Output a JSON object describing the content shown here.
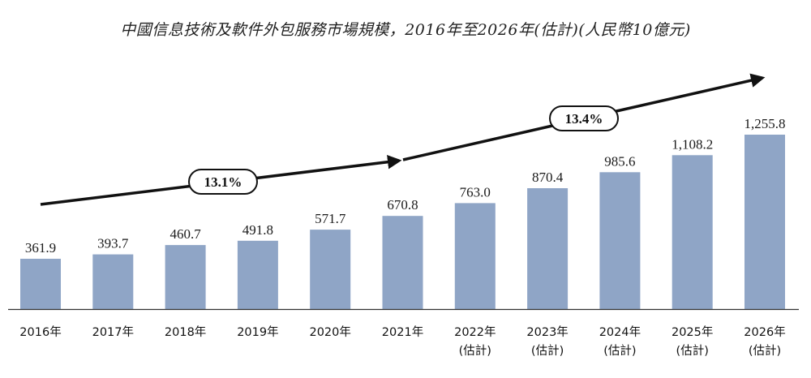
{
  "chart_data": {
    "type": "bar",
    "title": "中國信息技術及軟件外包服務市場規模，2016年至2026年(估計)(人民幣10億元)",
    "categories": [
      "2016年",
      "2017年",
      "2018年",
      "2019年",
      "2020年",
      "2021年",
      "2022年",
      "2023年",
      "2024年",
      "2025年",
      "2026年"
    ],
    "category_notes": [
      "",
      "",
      "",
      "",
      "",
      "",
      "(估計)",
      "(估計)",
      "(估計)",
      "(估計)",
      "(估計)"
    ],
    "values": [
      361.9,
      393.7,
      460.7,
      491.8,
      571.7,
      670.8,
      763.0,
      870.4,
      985.6,
      1108.2,
      1255.8
    ],
    "value_labels": [
      "361.9",
      "393.7",
      "460.7",
      "491.8",
      "571.7",
      "670.8",
      "763.0",
      "870.4",
      "985.6",
      "1,108.2",
      "1,255.8"
    ],
    "ylim": [
      0,
      1350
    ],
    "bar_color": "#8fa5c6",
    "grid": false,
    "annotations": [
      {
        "label": "13.1%",
        "from": "2016年",
        "to": "2021年"
      },
      {
        "label": "13.4%",
        "from": "2021年",
        "to": "2026年"
      }
    ]
  }
}
